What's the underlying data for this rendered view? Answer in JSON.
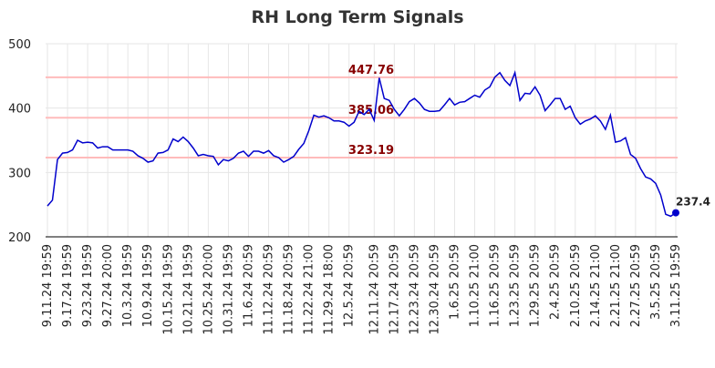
{
  "chart_data": {
    "type": "line",
    "title": "RH Long Term Signals",
    "categories": [
      "9.11.24 19:59",
      null,
      null,
      null,
      "9.17.24 19:59",
      null,
      null,
      null,
      "9.23.24 19:59",
      null,
      null,
      null,
      "9.27.24 20:00",
      null,
      null,
      null,
      "10.3.24 19:59",
      null,
      null,
      null,
      "10.9.24 19:59",
      null,
      null,
      null,
      "10.15.24 19:59",
      null,
      null,
      null,
      "10.21.24 19:59",
      null,
      null,
      null,
      "10.25.24 20:00",
      null,
      null,
      null,
      "10.31.24 19:59",
      null,
      null,
      null,
      "11.6.24 20:59",
      null,
      null,
      null,
      "11.12.24 20:59",
      null,
      null,
      null,
      "11.18.24 20:59",
      null,
      null,
      null,
      "11.22.24 21:00",
      null,
      null,
      null,
      "11.29.24 18:00",
      null,
      null,
      null,
      "12.5.24 20:59",
      null,
      null,
      null,
      null,
      "12.11.24 20:59",
      null,
      null,
      null,
      "12.17.24 20:59",
      null,
      null,
      null,
      "12.23.24 20:59",
      null,
      null,
      null,
      "12.30.24 20:59",
      null,
      null,
      null,
      "1.6.25 20:59",
      null,
      null,
      null,
      "1.10.25 21:00",
      null,
      null,
      null,
      "1.16.25 20:59",
      null,
      null,
      null,
      "1.23.25 20:59",
      null,
      null,
      null,
      "1.29.25 20:59",
      null,
      null,
      null,
      "2.4.25 20:59",
      null,
      null,
      null,
      "2.10.25 20:59",
      null,
      null,
      null,
      "2.14.25 21:00",
      null,
      null,
      null,
      "2.21.25 21:00",
      null,
      null,
      null,
      "2.27.25 20:59",
      null,
      null,
      null,
      "3.5.25 20:59",
      null,
      null,
      null,
      "3.11.25 19:59"
    ],
    "series": [
      {
        "color": "#0000cc",
        "values": [
          248,
          257,
          320,
          330,
          331,
          335,
          350,
          346,
          347,
          346,
          338,
          340,
          340,
          335,
          335,
          335,
          335,
          333,
          326,
          322,
          316,
          318,
          330,
          331,
          335,
          352,
          348,
          355,
          348,
          338,
          326,
          328,
          326,
          325,
          312,
          320,
          318,
          322,
          330,
          333,
          325,
          333,
          333,
          330,
          334,
          326,
          323,
          316,
          320,
          325,
          336,
          345,
          365,
          389,
          386,
          388,
          385,
          380,
          380,
          378,
          372,
          378,
          395,
          390,
          398,
          381,
          447,
          415,
          412,
          398,
          388,
          398,
          410,
          415,
          408,
          398,
          395,
          395,
          396,
          405,
          415,
          405,
          409,
          410,
          415,
          420,
          417,
          428,
          433,
          448,
          455,
          443,
          435,
          455,
          412,
          423,
          422,
          433,
          420,
          396,
          405,
          415,
          415,
          398,
          403,
          385,
          375,
          380,
          383,
          388,
          380,
          367,
          389,
          347,
          349,
          354,
          328,
          322,
          306,
          293,
          290,
          283,
          265,
          235,
          232,
          237.4
        ]
      }
    ],
    "hlines": [
      {
        "value": 447.76,
        "color": "#ffbbbb"
      },
      {
        "value": 385.06,
        "color": "#ffbbbb"
      },
      {
        "value": 323.19,
        "color": "#ffbbbb"
      }
    ],
    "hline_label_color": "#880000",
    "ylim": [
      200,
      500
    ],
    "yticks": [
      200,
      300,
      400,
      500
    ],
    "grid": true
  }
}
